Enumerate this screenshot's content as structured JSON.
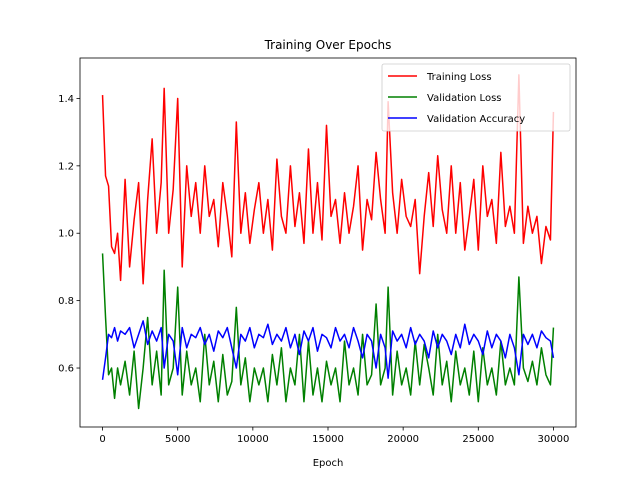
{
  "chart_data": {
    "type": "line",
    "title": "Training Over Epochs",
    "xlabel": "Epoch",
    "ylabel": "",
    "xlim": [
      -1500,
      31500
    ],
    "ylim": [
      0.425,
      1.52
    ],
    "xticks": [
      0,
      5000,
      10000,
      15000,
      20000,
      25000,
      30000
    ],
    "yticks": [
      0.6,
      0.8,
      1.0,
      1.2,
      1.4
    ],
    "ytick_labels": [
      "0.6",
      "0.8",
      "1.0",
      "1.2",
      "1.4"
    ],
    "grid": false,
    "legend_position": "top-right",
    "series": [
      {
        "name": "Training Loss",
        "color": "#ff0000",
        "x": [
          0,
          200,
          400,
          600,
          800,
          1000,
          1200,
          1500,
          1800,
          2100,
          2400,
          2700,
          3000,
          3300,
          3600,
          3900,
          4100,
          4400,
          4700,
          5000,
          5300,
          5600,
          5900,
          6200,
          6500,
          6800,
          7100,
          7400,
          7700,
          8000,
          8300,
          8600,
          8900,
          9200,
          9500,
          9800,
          10100,
          10400,
          10700,
          11000,
          11300,
          11600,
          11900,
          12200,
          12500,
          12800,
          13100,
          13400,
          13700,
          14000,
          14300,
          14600,
          14900,
          15200,
          15500,
          15800,
          16100,
          16400,
          16700,
          17000,
          17300,
          17600,
          17900,
          18200,
          18500,
          18800,
          19000,
          19300,
          19600,
          19900,
          20200,
          20500,
          20800,
          21100,
          21400,
          21700,
          22000,
          22300,
          22600,
          22900,
          23200,
          23500,
          23800,
          24100,
          24400,
          24700,
          25000,
          25300,
          25600,
          25900,
          26200,
          26500,
          26800,
          27100,
          27400,
          27700,
          28000,
          28300,
          28600,
          28900,
          29200,
          29500,
          29800,
          30000
        ],
        "y": [
          1.41,
          1.17,
          1.14,
          0.96,
          0.94,
          1.0,
          0.86,
          1.16,
          0.9,
          1.04,
          1.15,
          0.85,
          1.1,
          1.28,
          1.0,
          1.15,
          1.43,
          1.0,
          1.13,
          1.4,
          0.9,
          1.2,
          1.05,
          1.15,
          1.0,
          1.2,
          1.05,
          1.1,
          0.96,
          1.15,
          1.05,
          0.93,
          1.33,
          1.0,
          1.12,
          0.97,
          1.07,
          1.15,
          1.0,
          1.1,
          0.95,
          1.22,
          1.05,
          1.0,
          1.2,
          1.02,
          1.12,
          0.97,
          1.25,
          1.0,
          1.15,
          0.98,
          1.32,
          1.05,
          1.1,
          0.97,
          1.12,
          1.0,
          1.08,
          1.2,
          0.95,
          1.1,
          1.04,
          1.24,
          1.1,
          1.0,
          1.39,
          1.12,
          1.0,
          1.16,
          1.05,
          1.02,
          1.1,
          0.88,
          1.05,
          1.18,
          1.02,
          1.23,
          1.07,
          1.0,
          1.2,
          1.0,
          1.15,
          0.95,
          1.05,
          1.16,
          0.95,
          1.2,
          1.05,
          1.1,
          0.97,
          1.24,
          1.02,
          1.08,
          1.0,
          1.47,
          0.97,
          1.08,
          1.0,
          1.05,
          0.91,
          1.02,
          0.98,
          1.36
        ]
      },
      {
        "name": "Validation Loss",
        "color": "#008000",
        "x": [
          0,
          200,
          400,
          600,
          800,
          1000,
          1200,
          1500,
          1800,
          2100,
          2400,
          2700,
          3000,
          3300,
          3600,
          3900,
          4100,
          4400,
          4700,
          5000,
          5300,
          5600,
          5900,
          6200,
          6500,
          6800,
          7100,
          7400,
          7700,
          8000,
          8300,
          8600,
          8900,
          9200,
          9500,
          9800,
          10100,
          10400,
          10700,
          11000,
          11300,
          11600,
          11900,
          12200,
          12500,
          12800,
          13100,
          13400,
          13700,
          14000,
          14300,
          14600,
          14900,
          15200,
          15500,
          15800,
          16100,
          16400,
          16700,
          17000,
          17300,
          17600,
          17900,
          18200,
          18500,
          18800,
          19000,
          19300,
          19600,
          19900,
          20200,
          20500,
          20800,
          21100,
          21400,
          21700,
          22000,
          22300,
          22600,
          22900,
          23200,
          23500,
          23800,
          24100,
          24400,
          24700,
          25000,
          25300,
          25600,
          25900,
          26200,
          26500,
          26800,
          27100,
          27400,
          27700,
          28000,
          28300,
          28600,
          28900,
          29200,
          29500,
          29800,
          30000
        ],
        "y": [
          0.94,
          0.75,
          0.58,
          0.6,
          0.51,
          0.6,
          0.55,
          0.62,
          0.52,
          0.65,
          0.48,
          0.6,
          0.75,
          0.55,
          0.65,
          0.52,
          0.89,
          0.55,
          0.6,
          0.84,
          0.52,
          0.65,
          0.55,
          0.6,
          0.5,
          0.7,
          0.55,
          0.62,
          0.5,
          0.64,
          0.52,
          0.56,
          0.78,
          0.55,
          0.63,
          0.5,
          0.6,
          0.55,
          0.6,
          0.5,
          0.64,
          0.55,
          0.66,
          0.5,
          0.6,
          0.55,
          0.7,
          0.5,
          0.68,
          0.52,
          0.6,
          0.5,
          0.62,
          0.55,
          0.6,
          0.5,
          0.68,
          0.55,
          0.6,
          0.52,
          0.7,
          0.55,
          0.58,
          0.79,
          0.55,
          0.6,
          0.84,
          0.52,
          0.65,
          0.55,
          0.6,
          0.52,
          0.68,
          0.55,
          0.67,
          0.6,
          0.52,
          0.7,
          0.55,
          0.62,
          0.5,
          0.65,
          0.55,
          0.6,
          0.52,
          0.65,
          0.5,
          0.66,
          0.55,
          0.6,
          0.52,
          0.68,
          0.55,
          0.6,
          0.55,
          0.87,
          0.6,
          0.56,
          0.62,
          0.55,
          0.66,
          0.58,
          0.55,
          0.72
        ]
      },
      {
        "name": "Validation Accuracy",
        "color": "#0000ff",
        "x": [
          0,
          200,
          400,
          600,
          800,
          1000,
          1200,
          1500,
          1800,
          2100,
          2400,
          2700,
          3000,
          3300,
          3600,
          3900,
          4100,
          4400,
          4700,
          5000,
          5300,
          5600,
          5900,
          6200,
          6500,
          6800,
          7100,
          7400,
          7700,
          8000,
          8300,
          8600,
          8900,
          9200,
          9500,
          9800,
          10100,
          10400,
          10700,
          11000,
          11300,
          11600,
          11900,
          12200,
          12500,
          12800,
          13100,
          13400,
          13700,
          14000,
          14300,
          14600,
          14900,
          15200,
          15500,
          15800,
          16100,
          16400,
          16700,
          17000,
          17300,
          17600,
          17900,
          18200,
          18500,
          18800,
          19000,
          19300,
          19600,
          19900,
          20200,
          20500,
          20800,
          21100,
          21400,
          21700,
          22000,
          22300,
          22600,
          22900,
          23200,
          23500,
          23800,
          24100,
          24400,
          24700,
          25000,
          25300,
          25600,
          25900,
          26200,
          26500,
          26800,
          27100,
          27400,
          27700,
          28000,
          28300,
          28600,
          28900,
          29200,
          29500,
          29800,
          30000
        ],
        "y": [
          0.565,
          0.63,
          0.7,
          0.69,
          0.72,
          0.68,
          0.71,
          0.7,
          0.72,
          0.66,
          0.7,
          0.74,
          0.67,
          0.71,
          0.68,
          0.72,
          0.6,
          0.7,
          0.68,
          0.58,
          0.72,
          0.66,
          0.7,
          0.69,
          0.72,
          0.67,
          0.7,
          0.65,
          0.71,
          0.69,
          0.72,
          0.66,
          0.6,
          0.7,
          0.68,
          0.72,
          0.66,
          0.7,
          0.69,
          0.73,
          0.67,
          0.7,
          0.68,
          0.72,
          0.66,
          0.7,
          0.64,
          0.71,
          0.68,
          0.72,
          0.65,
          0.7,
          0.69,
          0.66,
          0.72,
          0.68,
          0.7,
          0.66,
          0.72,
          0.68,
          0.63,
          0.7,
          0.68,
          0.6,
          0.7,
          0.66,
          0.57,
          0.71,
          0.68,
          0.7,
          0.66,
          0.72,
          0.67,
          0.7,
          0.68,
          0.63,
          0.71,
          0.66,
          0.7,
          0.68,
          0.64,
          0.7,
          0.66,
          0.73,
          0.67,
          0.7,
          0.68,
          0.64,
          0.71,
          0.66,
          0.7,
          0.68,
          0.63,
          0.7,
          0.66,
          0.58,
          0.7,
          0.67,
          0.7,
          0.66,
          0.71,
          0.69,
          0.68,
          0.63
        ]
      }
    ]
  }
}
